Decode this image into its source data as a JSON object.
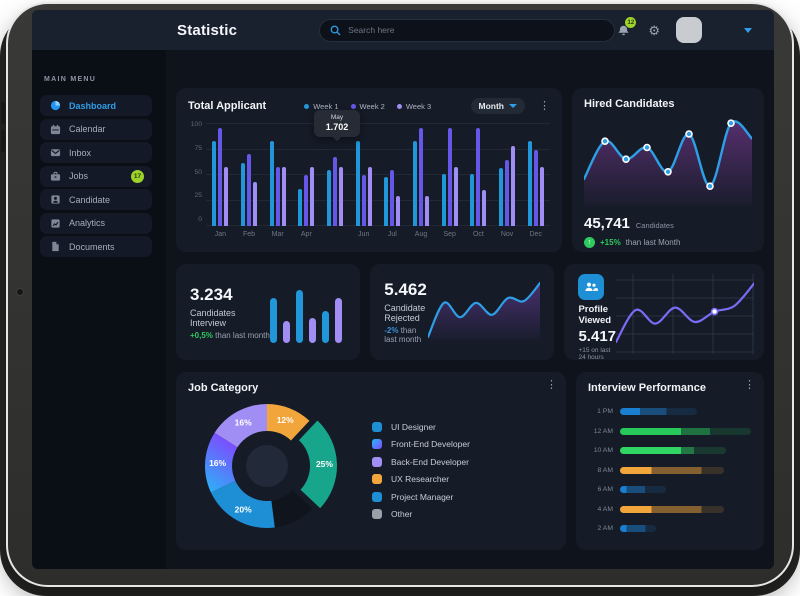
{
  "topbar": {
    "title": "Statistic",
    "search_placeholder": "Search here",
    "notification_count": "12"
  },
  "sidebar": {
    "heading": "MAIN MENU",
    "items": [
      {
        "label": "Dashboard",
        "icon": "dashboard-icon",
        "active": true
      },
      {
        "label": "Calendar",
        "icon": "calendar-icon",
        "active": false
      },
      {
        "label": "Inbox",
        "icon": "inbox-icon",
        "active": false
      },
      {
        "label": "Jobs",
        "icon": "jobs-icon",
        "active": false,
        "badge": "17"
      },
      {
        "label": "Candidate",
        "icon": "candidate-icon",
        "active": false
      },
      {
        "label": "Analytics",
        "icon": "analytics-icon",
        "active": false
      },
      {
        "label": "Documents",
        "icon": "documents-icon",
        "active": false
      }
    ]
  },
  "total_applicant": {
    "title": "Total Applicant",
    "period": "Month",
    "tooltip": {
      "month": "May",
      "value": "1.702"
    }
  },
  "hired": {
    "title": "Hired Candidates",
    "value": "45,741",
    "unit": "Candidates",
    "delta": "+15%",
    "delta_text": "than last Month"
  },
  "stats": {
    "interview": {
      "value": "3.234",
      "label": "Candidates Interview",
      "delta": "+0,5%",
      "delta_text": "than last month"
    },
    "rejected": {
      "value": "5.462",
      "label": "Candidate Rejected",
      "delta": "-2%",
      "delta_text": "than last month"
    },
    "profile": {
      "title": "Profile Viewed",
      "value": "5.417",
      "sub": "+15 on last 24 hours"
    }
  },
  "job_category": {
    "title": "Job Category",
    "legend": [
      {
        "name": "UI Designer",
        "color": "#1e8fd5"
      },
      {
        "name": "Front-End Developer",
        "color": "gradient"
      },
      {
        "name": "Back-End Developer",
        "color": "#a18ef5"
      },
      {
        "name": "UX Researcher",
        "color": "#f2a53a"
      },
      {
        "name": "Project Manager",
        "color": "#1e8fd5"
      },
      {
        "name": "Other",
        "color": "#9aa0a8"
      }
    ]
  },
  "performance": {
    "title": "Interview Performance"
  },
  "chart_data": [
    {
      "id": "total-applicant",
      "type": "bar",
      "title": "Total Applicant",
      "categories": [
        "Jan",
        "Feb",
        "Mar",
        "Apr",
        "",
        "Jun",
        "Jul",
        "Aug",
        "Sep",
        "Oct",
        "Nov",
        "Dec"
      ],
      "note": "May axis label hidden behind tooltip",
      "series": [
        {
          "name": "Week 1",
          "color": "#2196d9",
          "values": [
            83,
            62,
            83,
            36,
            55,
            83,
            48,
            83,
            51,
            51,
            57,
            83
          ]
        },
        {
          "name": "Week 2",
          "color": "#6558e8",
          "values": [
            96,
            71,
            58,
            50,
            68,
            50,
            55,
            96,
            96,
            96,
            65,
            75
          ]
        },
        {
          "name": "Week 3",
          "color": "#a18ef5",
          "values": [
            58,
            43,
            58,
            58,
            58,
            58,
            29,
            29,
            58,
            35,
            78,
            58
          ]
        }
      ],
      "ylim": [
        0,
        100
      ],
      "yticks": [
        100,
        75,
        50,
        25,
        0
      ],
      "legend_position": "top",
      "tooltip": {
        "category": "May",
        "value": "1.702"
      }
    },
    {
      "id": "hired-line",
      "type": "area",
      "line_color": "#2e9fe6",
      "fill_color": "#8b3fa8",
      "points": [
        70,
        28,
        48,
        35,
        62,
        20,
        78,
        8,
        25
      ],
      "dot_indices": [
        1,
        2,
        3,
        4,
        5,
        6,
        7
      ]
    },
    {
      "id": "interview-bars",
      "type": "bar",
      "values": [
        72,
        35,
        85,
        40,
        52,
        72
      ],
      "colors": [
        "#2196d9",
        "#a18ef5",
        "#2196d9",
        "#a18ef5",
        "#2196d9",
        "#a18ef5"
      ]
    },
    {
      "id": "rejected-line",
      "type": "area",
      "line_color": "#2e9fe6",
      "fill_color": "#6b3fa0",
      "points": [
        95,
        38,
        62,
        38,
        58,
        30,
        35,
        5
      ]
    },
    {
      "id": "profile-line",
      "type": "line",
      "line_color": "#7b6cf6",
      "grid": true,
      "points": [
        85,
        45,
        62,
        42,
        60,
        47,
        40,
        12
      ],
      "dot_index": 5
    },
    {
      "id": "job-category-donut",
      "type": "pie",
      "slices": [
        {
          "label": "12%",
          "value": 12,
          "color": "#f2a53a"
        },
        {
          "label": "25%",
          "value": 25,
          "color": "#17a58c",
          "explode": true
        },
        {
          "label": "",
          "value": 11,
          "color": "#10151d"
        },
        {
          "label": "20%",
          "value": 20,
          "color": "#1e8fd5"
        },
        {
          "label": "16%",
          "value": 16,
          "color": "gradient"
        },
        {
          "label": "16%",
          "value": 16,
          "color": "#a18ef5"
        }
      ]
    },
    {
      "id": "interview-performance",
      "type": "bar-h",
      "rows": [
        {
          "label": "1 PM",
          "color": "#1a7fd0",
          "bright": 15,
          "mid": 35,
          "total": 58
        },
        {
          "label": "12 AM",
          "color": "#26c95a",
          "bright": 46,
          "mid": 68,
          "total": 99
        },
        {
          "label": "10 AM",
          "color": "#30d563",
          "bright": 46,
          "mid": 56,
          "total": 80
        },
        {
          "label": "8 AM",
          "color": "#f2a53a",
          "bright": 24,
          "mid": 62,
          "total": 79
        },
        {
          "label": "6 AM",
          "color": "#1a7fd0",
          "bright": 5,
          "mid": 19,
          "total": 35
        },
        {
          "label": "4 AM",
          "color": "#f2a53a",
          "bright": 24,
          "mid": 62,
          "total": 79
        },
        {
          "label": "2 AM",
          "color": "#1a7fd0",
          "bright": 5,
          "mid": 19,
          "total": 27
        }
      ]
    }
  ]
}
